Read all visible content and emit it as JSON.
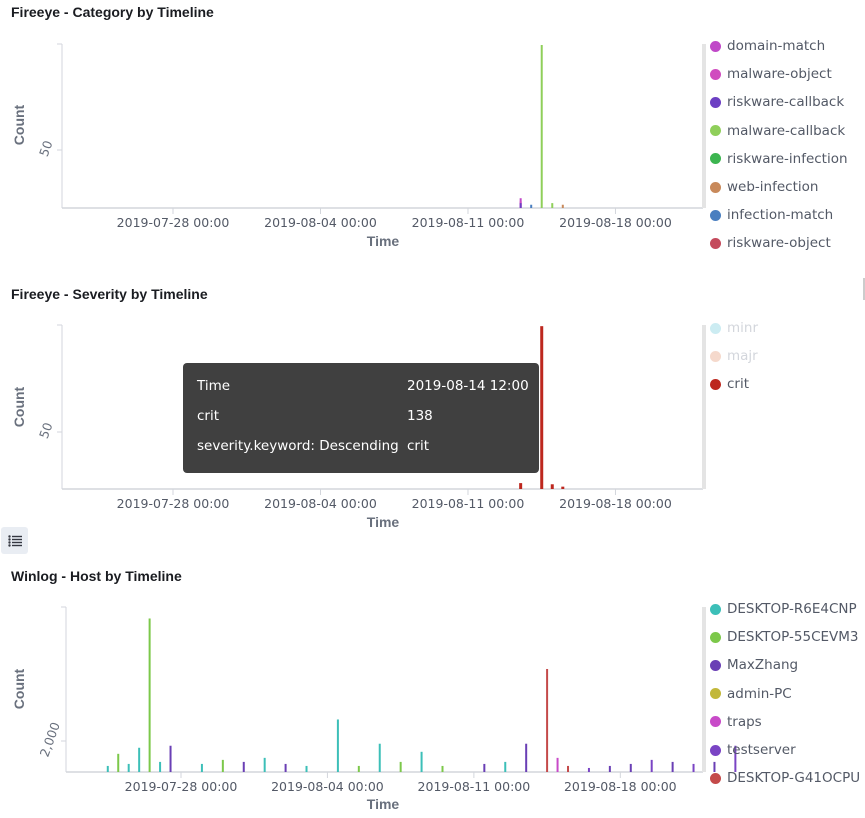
{
  "panels": [
    {
      "title": "Fireeye - Category by Timeline"
    },
    {
      "title": "Fireeye - Severity by Timeline"
    },
    {
      "title": "Winlog - Host by Timeline"
    }
  ],
  "chart_data": [
    {
      "type": "bar",
      "title": "Fireeye - Category by Timeline",
      "xlabel": "Time",
      "ylabel": "Count",
      "x_ticks": [
        "2019-07-28 00:00",
        "2019-08-04 00:00",
        "2019-08-11 00:00",
        "2019-08-18 00:00"
      ],
      "y_ticks": [
        50
      ],
      "ylim": [
        0,
        100
      ],
      "legend_position": "right",
      "series": [
        {
          "name": "domain-match",
          "color": "#c048c8"
        },
        {
          "name": "malware-object",
          "color": "#d04cbf"
        },
        {
          "name": "riskware-callback",
          "color": "#6c3fc3"
        },
        {
          "name": "malware-callback",
          "color": "#8fcf5a"
        },
        {
          "name": "riskware-infection",
          "color": "#3cb550"
        },
        {
          "name": "web-infection",
          "color": "#c8895a"
        },
        {
          "name": "infection-match",
          "color": "#4a7fc0"
        },
        {
          "name": "riskware-object",
          "color": "#c44a5c"
        }
      ],
      "points": [
        {
          "x": "2019-08-13 12:00",
          "y": 6,
          "series": "domain-match"
        },
        {
          "x": "2019-08-13 12:00",
          "y": 4,
          "series": "malware-object"
        },
        {
          "x": "2019-08-13 12:00",
          "y": 3,
          "series": "riskware-callback"
        },
        {
          "x": "2019-08-14 00:00",
          "y": 2,
          "series": "infection-match"
        },
        {
          "x": "2019-08-14 12:00",
          "y": 100,
          "series": "malware-callback"
        },
        {
          "x": "2019-08-15 00:00",
          "y": 3,
          "series": "malware-callback"
        },
        {
          "x": "2019-08-15 12:00",
          "y": 2,
          "series": "web-infection"
        }
      ]
    },
    {
      "type": "bar",
      "title": "Fireeye - Severity by Timeline",
      "xlabel": "Time",
      "ylabel": "Count",
      "x_ticks": [
        "2019-07-28 00:00",
        "2019-08-04 00:00",
        "2019-08-11 00:00",
        "2019-08-18 00:00"
      ],
      "y_ticks": [
        50
      ],
      "ylim": [
        0,
        138
      ],
      "legend_position": "right",
      "series": [
        {
          "name": "minr",
          "color": "#ccecf2",
          "faded": true
        },
        {
          "name": "majr",
          "color": "#f5d9cc",
          "faded": true
        },
        {
          "name": "crit",
          "color": "#bd271e",
          "faded": false
        }
      ],
      "points": [
        {
          "x": "2019-08-13 12:00",
          "y": 5,
          "series": "crit"
        },
        {
          "x": "2019-08-14 12:00",
          "y": 138,
          "series": "crit"
        },
        {
          "x": "2019-08-15 00:00",
          "y": 4,
          "series": "crit"
        },
        {
          "x": "2019-08-15 12:00",
          "y": 2,
          "series": "crit"
        }
      ],
      "tooltip": {
        "rows": [
          {
            "label": "Time",
            "value": "2019-08-14 12:00"
          },
          {
            "label": "crit",
            "value": "138"
          },
          {
            "label": "severity.keyword: Descending",
            "value": "crit"
          }
        ]
      }
    },
    {
      "type": "bar",
      "title": "Winlog - Host by Timeline",
      "xlabel": "Time",
      "ylabel": "Count",
      "x_ticks": [
        "2019-07-28 00:00",
        "2019-08-04 00:00",
        "2019-08-11 00:00",
        "2019-08-18 00:00"
      ],
      "y_ticks": [
        2000
      ],
      "y_tick_labels": [
        "2,000"
      ],
      "ylim": [
        0,
        8000
      ],
      "legend_position": "right",
      "series": [
        {
          "name": "DESKTOP-R6E4CNP",
          "color": "#3cbfb8"
        },
        {
          "name": "DESKTOP-55CEVM3",
          "color": "#7cc84a"
        },
        {
          "name": "MaxZhang",
          "color": "#6a3fb5"
        },
        {
          "name": "admin-PC",
          "color": "#c2b83a"
        },
        {
          "name": "traps",
          "color": "#c84ac8"
        },
        {
          "name": "testserver",
          "color": "#7a44c4"
        },
        {
          "name": "DESKTOP-G41OCPU",
          "color": "#c44a4a"
        }
      ],
      "points": [
        {
          "x": "2019-07-24 12:00",
          "y": 300,
          "series": "DESKTOP-R6E4CNP"
        },
        {
          "x": "2019-07-25 00:00",
          "y": 900,
          "series": "DESKTOP-55CEVM3"
        },
        {
          "x": "2019-07-25 12:00",
          "y": 400,
          "series": "DESKTOP-R6E4CNP"
        },
        {
          "x": "2019-07-26 00:00",
          "y": 1200,
          "series": "DESKTOP-R6E4CNP"
        },
        {
          "x": "2019-07-26 12:00",
          "y": 7600,
          "series": "DESKTOP-55CEVM3"
        },
        {
          "x": "2019-07-27 00:00",
          "y": 500,
          "series": "DESKTOP-R6E4CNP"
        },
        {
          "x": "2019-07-27 12:00",
          "y": 1300,
          "series": "MaxZhang"
        },
        {
          "x": "2019-07-29 00:00",
          "y": 400,
          "series": "DESKTOP-R6E4CNP"
        },
        {
          "x": "2019-07-30 00:00",
          "y": 600,
          "series": "DESKTOP-55CEVM3"
        },
        {
          "x": "2019-07-31 00:00",
          "y": 500,
          "series": "MaxZhang"
        },
        {
          "x": "2019-08-01 00:00",
          "y": 700,
          "series": "DESKTOP-R6E4CNP"
        },
        {
          "x": "2019-08-02 00:00",
          "y": 400,
          "series": "MaxZhang"
        },
        {
          "x": "2019-08-03 00:00",
          "y": 300,
          "series": "DESKTOP-R6E4CNP"
        },
        {
          "x": "2019-08-04 12:00",
          "y": 2600,
          "series": "DESKTOP-R6E4CNP"
        },
        {
          "x": "2019-08-05 12:00",
          "y": 300,
          "series": "DESKTOP-55CEVM3"
        },
        {
          "x": "2019-08-06 12:00",
          "y": 1400,
          "series": "DESKTOP-R6E4CNP"
        },
        {
          "x": "2019-08-07 12:00",
          "y": 500,
          "series": "DESKTOP-55CEVM3"
        },
        {
          "x": "2019-08-08 12:00",
          "y": 1000,
          "series": "DESKTOP-R6E4CNP"
        },
        {
          "x": "2019-08-09 12:00",
          "y": 300,
          "series": "DESKTOP-55CEVM3"
        },
        {
          "x": "2019-08-11 12:00",
          "y": 400,
          "series": "MaxZhang"
        },
        {
          "x": "2019-08-12 12:00",
          "y": 500,
          "series": "DESKTOP-R6E4CNP"
        },
        {
          "x": "2019-08-13 12:00",
          "y": 1400,
          "series": "MaxZhang"
        },
        {
          "x": "2019-08-14 12:00",
          "y": 5100,
          "series": "DESKTOP-G41OCPU"
        },
        {
          "x": "2019-08-15 00:00",
          "y": 700,
          "series": "traps"
        },
        {
          "x": "2019-08-15 12:00",
          "y": 300,
          "series": "DESKTOP-G41OCPU"
        },
        {
          "x": "2019-08-16 12:00",
          "y": 200,
          "series": "testserver"
        },
        {
          "x": "2019-08-17 12:00",
          "y": 300,
          "series": "MaxZhang"
        },
        {
          "x": "2019-08-18 12:00",
          "y": 400,
          "series": "MaxZhang"
        },
        {
          "x": "2019-08-19 12:00",
          "y": 600,
          "series": "testserver"
        },
        {
          "x": "2019-08-20 12:00",
          "y": 500,
          "series": "MaxZhang"
        },
        {
          "x": "2019-08-21 12:00",
          "y": 400,
          "series": "testserver"
        },
        {
          "x": "2019-08-22 12:00",
          "y": 500,
          "series": "MaxZhang"
        },
        {
          "x": "2019-08-23 12:00",
          "y": 1300,
          "series": "testserver"
        }
      ]
    }
  ]
}
